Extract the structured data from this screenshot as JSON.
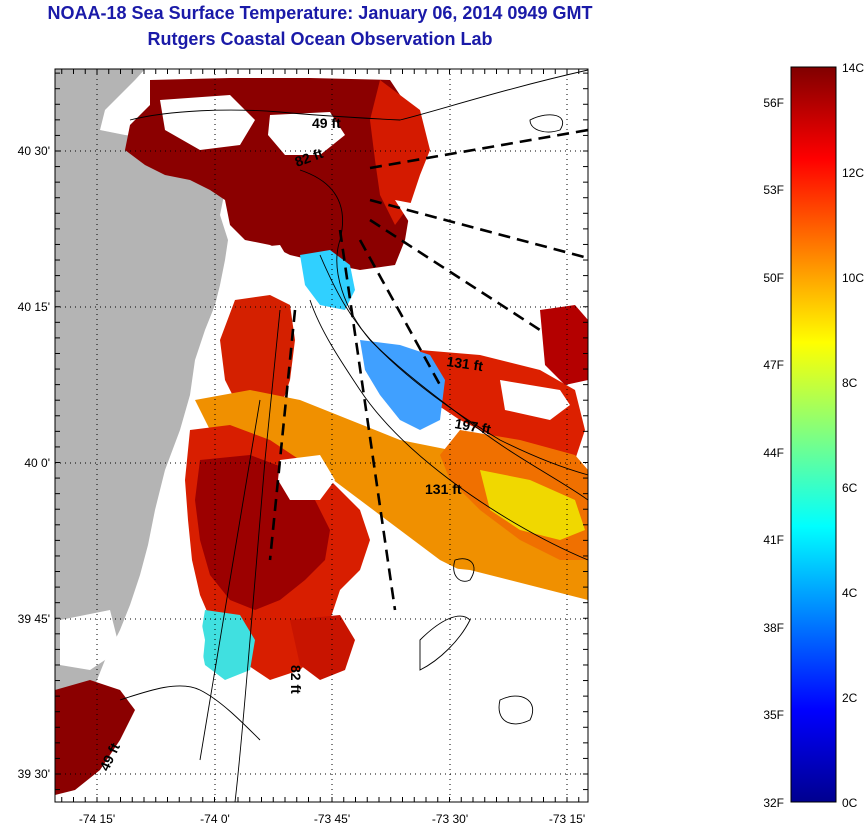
{
  "header": {
    "title": "NOAA-18 Sea Surface Temperature:  January 06, 2014 0949 GMT",
    "subtitle": "Rutgers Coastal Ocean Observation Lab"
  },
  "map": {
    "lat_labels": [
      "40 30'",
      "40 15'",
      "40 0'",
      "39 45'",
      "39 30'"
    ],
    "lon_labels": [
      "-74 15'",
      "-74 0'",
      "-73 45'",
      "-73 30'",
      "-73 15'"
    ],
    "lat_range": [
      39.46,
      40.68
    ],
    "lon_range": [
      -74.35,
      -73.23
    ],
    "grid": "dotted",
    "depth_contour_labels": [
      "49 ft",
      "82 ft",
      "131 ft",
      "197 ft",
      "131 ft",
      "82 ft",
      "49 ft"
    ]
  },
  "colorbar": {
    "celsius_labels": [
      "14C",
      "12C",
      "10C",
      "8C",
      "6C",
      "4C",
      "2C",
      "0C"
    ],
    "fahrenheit_labels": [
      "56F",
      "53F",
      "50F",
      "47F",
      "44F",
      "41F",
      "38F",
      "35F",
      "32F"
    ],
    "range_c": [
      0,
      14
    ],
    "colormap": "jet"
  },
  "colors": {
    "title": "#1a1aa8",
    "land": "#b4b4b4",
    "warmest": "#800000",
    "coldest": "#00008f"
  }
}
